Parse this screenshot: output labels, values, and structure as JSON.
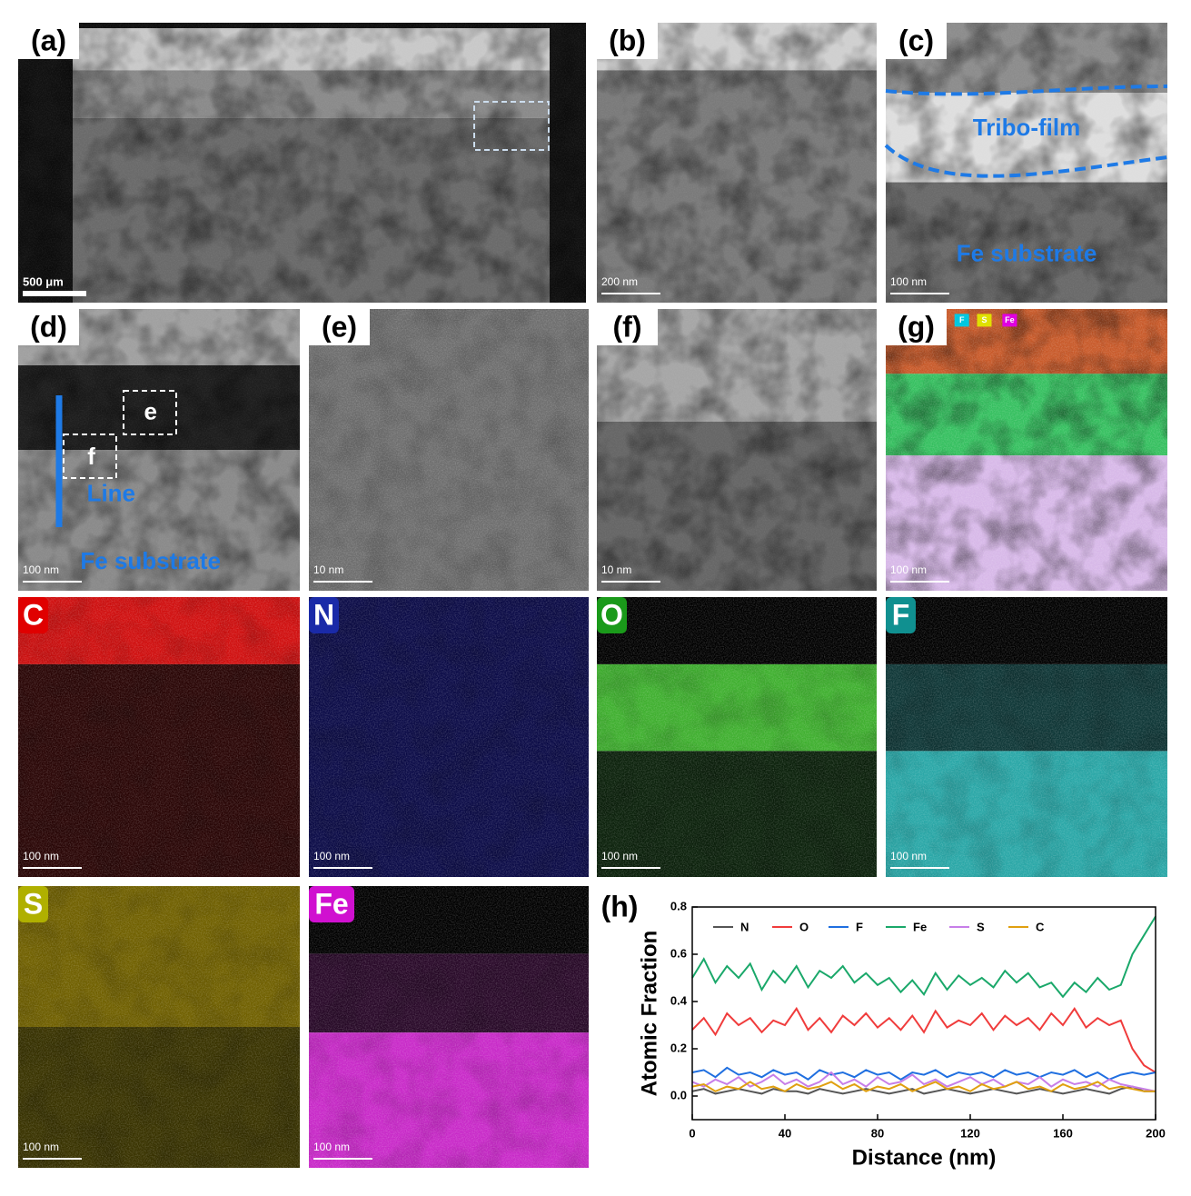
{
  "panels": [
    {
      "label": "(a)",
      "scale_bar": "500 μm"
    },
    {
      "label": "(b)",
      "scale_bar": "200 nm"
    },
    {
      "label": "(c)",
      "scale_bar": "100 nm",
      "annotations": [
        "Tribo-film",
        "Fe substrate"
      ]
    },
    {
      "label": "(d)",
      "scale_bar": "100 nm",
      "annotations": [
        "e",
        "f",
        "Line",
        "Fe substrate"
      ]
    },
    {
      "label": "(e)",
      "scale_bar": "10 nm"
    },
    {
      "label": "(f)",
      "scale_bar": "10 nm"
    },
    {
      "label": "(g)",
      "scale_bar": "100 nm",
      "annotations": [
        "F",
        "S",
        "Fe"
      ]
    },
    {
      "label": "C",
      "scale_bar": "100 nm"
    },
    {
      "label": "N",
      "scale_bar": "100 nm"
    },
    {
      "label": "O",
      "scale_bar": "100 nm"
    },
    {
      "label": "F",
      "scale_bar": "100 nm"
    },
    {
      "label": "S",
      "scale_bar": "100 nm"
    },
    {
      "label": "Fe",
      "scale_bar": "100 nm"
    }
  ],
  "chart_data": {
    "type": "line",
    "panel_label": "(h)",
    "x_label": "Distance (nm)",
    "y_label": "Atomic Fraction",
    "x": [
      0,
      5,
      10,
      15,
      20,
      25,
      30,
      35,
      40,
      45,
      50,
      55,
      60,
      65,
      70,
      75,
      80,
      85,
      90,
      95,
      100,
      105,
      110,
      115,
      120,
      125,
      130,
      135,
      140,
      145,
      150,
      155,
      160,
      165,
      170,
      175,
      180,
      185,
      190,
      195,
      200
    ],
    "series": [
      {
        "name": "N",
        "color": "#555555",
        "values": [
          0.02,
          0.03,
          0.01,
          0.02,
          0.03,
          0.02,
          0.01,
          0.03,
          0.02,
          0.02,
          0.01,
          0.03,
          0.02,
          0.01,
          0.02,
          0.03,
          0.02,
          0.01,
          0.02,
          0.03,
          0.01,
          0.02,
          0.03,
          0.02,
          0.01,
          0.02,
          0.03,
          0.02,
          0.01,
          0.02,
          0.03,
          0.02,
          0.01,
          0.02,
          0.03,
          0.02,
          0.01,
          0.03,
          0.04,
          0.02,
          0.02
        ]
      },
      {
        "name": "O",
        "color": "#f03c3c",
        "values": [
          0.28,
          0.33,
          0.26,
          0.35,
          0.3,
          0.33,
          0.27,
          0.32,
          0.3,
          0.37,
          0.28,
          0.33,
          0.27,
          0.34,
          0.3,
          0.35,
          0.29,
          0.33,
          0.28,
          0.34,
          0.27,
          0.36,
          0.29,
          0.32,
          0.3,
          0.35,
          0.28,
          0.34,
          0.3,
          0.33,
          0.28,
          0.35,
          0.3,
          0.37,
          0.29,
          0.33,
          0.3,
          0.32,
          0.2,
          0.13,
          0.1
        ]
      },
      {
        "name": "F",
        "color": "#1f6fe0",
        "values": [
          0.1,
          0.11,
          0.08,
          0.12,
          0.09,
          0.1,
          0.08,
          0.11,
          0.09,
          0.1,
          0.07,
          0.11,
          0.09,
          0.1,
          0.08,
          0.11,
          0.09,
          0.1,
          0.07,
          0.1,
          0.09,
          0.11,
          0.08,
          0.1,
          0.09,
          0.1,
          0.08,
          0.11,
          0.09,
          0.1,
          0.08,
          0.1,
          0.09,
          0.11,
          0.08,
          0.1,
          0.07,
          0.09,
          0.1,
          0.09,
          0.1
        ]
      },
      {
        "name": "Fe",
        "color": "#1aa86a",
        "values": [
          0.5,
          0.58,
          0.48,
          0.55,
          0.5,
          0.56,
          0.45,
          0.53,
          0.48,
          0.55,
          0.46,
          0.53,
          0.5,
          0.55,
          0.48,
          0.52,
          0.47,
          0.5,
          0.44,
          0.49,
          0.43,
          0.52,
          0.45,
          0.51,
          0.47,
          0.5,
          0.46,
          0.53,
          0.48,
          0.52,
          0.46,
          0.48,
          0.42,
          0.48,
          0.44,
          0.5,
          0.45,
          0.47,
          0.6,
          0.68,
          0.76
        ]
      },
      {
        "name": "S",
        "color": "#c77ee8",
        "values": [
          0.06,
          0.04,
          0.07,
          0.05,
          0.08,
          0.04,
          0.06,
          0.09,
          0.05,
          0.07,
          0.04,
          0.06,
          0.1,
          0.05,
          0.07,
          0.04,
          0.08,
          0.05,
          0.06,
          0.09,
          0.05,
          0.07,
          0.04,
          0.06,
          0.08,
          0.05,
          0.07,
          0.04,
          0.06,
          0.05,
          0.08,
          0.04,
          0.07,
          0.05,
          0.06,
          0.04,
          0.07,
          0.05,
          0.04,
          0.03,
          0.02
        ]
      },
      {
        "name": "C",
        "color": "#e0a010",
        "values": [
          0.04,
          0.05,
          0.02,
          0.04,
          0.03,
          0.06,
          0.03,
          0.04,
          0.02,
          0.05,
          0.03,
          0.04,
          0.06,
          0.03,
          0.05,
          0.02,
          0.04,
          0.03,
          0.05,
          0.02,
          0.04,
          0.06,
          0.03,
          0.04,
          0.02,
          0.05,
          0.03,
          0.04,
          0.06,
          0.03,
          0.04,
          0.02,
          0.05,
          0.03,
          0.04,
          0.06,
          0.03,
          0.04,
          0.03,
          0.02,
          0.02
        ]
      }
    ],
    "xlim": [
      0,
      200
    ],
    "xticks": [
      0,
      40,
      80,
      120,
      160,
      200
    ],
    "ylim": [
      -0.1,
      0.8
    ],
    "yticks": [
      {
        "value": 0,
        "label": "0.0"
      },
      {
        "value": 0.2,
        "label": "0.2"
      },
      {
        "value": 0.4,
        "label": "0.4"
      },
      {
        "value": 0.6,
        "label": "0.6"
      },
      {
        "value": 0.8,
        "label": "0.8"
      }
    ]
  }
}
